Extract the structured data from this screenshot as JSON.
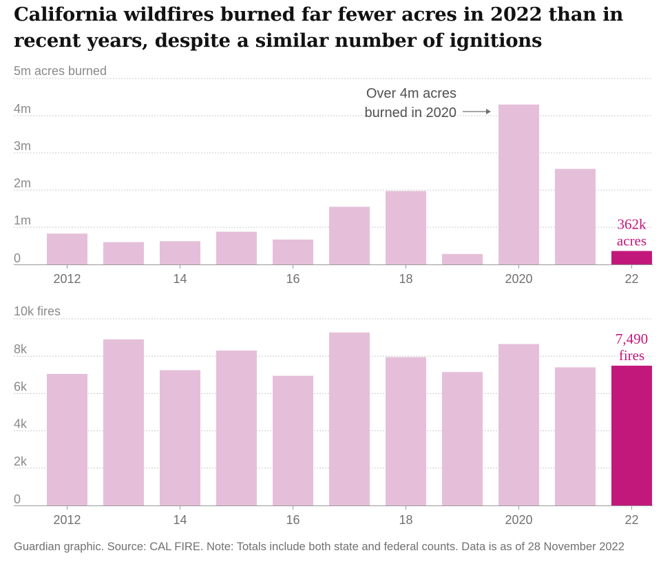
{
  "title": "California wildfires burned far fewer acres in 2022 than in recent years, despite a similar number of ignitions",
  "footer": "Guardian graphic. Source: CAL FIRE. Note: Totals include both state and federal counts. Data is as of 28 November 2022",
  "colors": {
    "bar": "#e5bfd9",
    "highlight": "#c2187c",
    "grid": "#c8c8c8",
    "baseline": "#999999"
  },
  "chart_data": [
    {
      "type": "bar",
      "unit_label": "5m acres burned",
      "y_ticks": [
        "4m",
        "3m",
        "2m",
        "1m",
        "0"
      ],
      "y_tick_values": [
        4000000,
        3000000,
        2000000,
        1000000,
        0
      ],
      "ylim": [
        0,
        5000000
      ],
      "grid": true,
      "x": [
        2012,
        2013,
        2014,
        2015,
        2016,
        2017,
        2018,
        2019,
        2020,
        2021,
        2022
      ],
      "x_tick_labels": [
        "2012",
        "14",
        "16",
        "18",
        "2020",
        "22"
      ],
      "values": [
        830000,
        600000,
        625000,
        880000,
        670000,
        1550000,
        1975000,
        280000,
        4300000,
        2570000,
        362000
      ],
      "highlight_index": 10,
      "highlight_label": [
        "362k",
        "acres"
      ],
      "annotation": [
        "Over 4m acres",
        "burned in 2020"
      ]
    },
    {
      "type": "bar",
      "unit_label": "10k fires",
      "y_ticks": [
        "8k",
        "6k",
        "4k",
        "2k",
        "0"
      ],
      "y_tick_values": [
        8000,
        6000,
        4000,
        2000,
        0
      ],
      "ylim": [
        0,
        10000
      ],
      "grid": true,
      "x": [
        2012,
        2013,
        2014,
        2015,
        2016,
        2017,
        2018,
        2019,
        2020,
        2021,
        2022
      ],
      "x_tick_labels": [
        "2012",
        "14",
        "16",
        "18",
        "2020",
        "22"
      ],
      "values": [
        7050,
        8900,
        7250,
        8300,
        6950,
        9270,
        7950,
        7150,
        8650,
        7400,
        7490
      ],
      "highlight_index": 10,
      "highlight_label": [
        "7,490",
        "fires"
      ]
    }
  ]
}
